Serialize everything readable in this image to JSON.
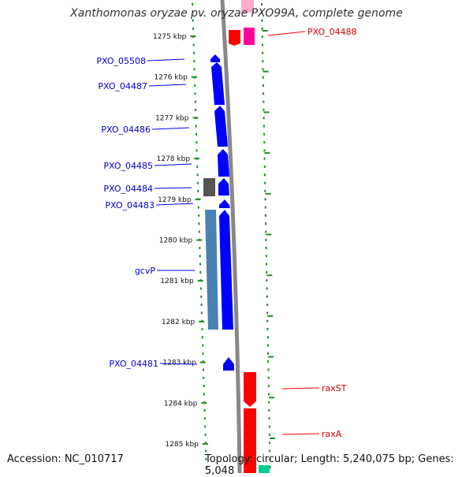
{
  "title": "Xanthomonas oryzae pv. oryzae PXO99A, complete genome",
  "footer": {
    "accession": "Accession: NC_010717",
    "summary": "Topology: circular; Length: 5,240,075 bp; Genes: 5,048"
  },
  "colors": {
    "forward_gene": "#0000ff",
    "reverse_gene": "#ff0000",
    "rna_gene": "#ff0099",
    "other_gene_dark": "#555555",
    "other_gene_blue": "#4a82b4",
    "ticks": "#228b22",
    "backbone": "#888888",
    "teal_feature": "#00cc99"
  },
  "ticks": [
    {
      "label": "1275 kbp",
      "kbp": 1275
    },
    {
      "label": "1276 kbp",
      "kbp": 1276
    },
    {
      "label": "1277 kbp",
      "kbp": 1277
    },
    {
      "label": "1278 kbp",
      "kbp": 1278
    },
    {
      "label": "1279 kbp",
      "kbp": 1279
    },
    {
      "label": "1280 kbp",
      "kbp": 1280
    },
    {
      "label": "1281 kbp",
      "kbp": 1281
    },
    {
      "label": "1282 kbp",
      "kbp": 1282
    },
    {
      "label": "1283 kbp",
      "kbp": 1283
    },
    {
      "label": "1284 kbp",
      "kbp": 1284
    },
    {
      "label": "1285 kbp",
      "kbp": 1285
    }
  ],
  "genes_left": [
    {
      "label": "PXO_05508"
    },
    {
      "label": "PXO_04487"
    },
    {
      "label": "PXO_04486"
    },
    {
      "label": "PXO_04485"
    },
    {
      "label": "PXO_04484"
    },
    {
      "label": "PXO_04483"
    },
    {
      "label": "gcvP"
    },
    {
      "label": "PXO_04481"
    }
  ],
  "genes_right": [
    {
      "label": "PXO_04488"
    },
    {
      "label": "raxST"
    },
    {
      "label": "raxA"
    }
  ]
}
